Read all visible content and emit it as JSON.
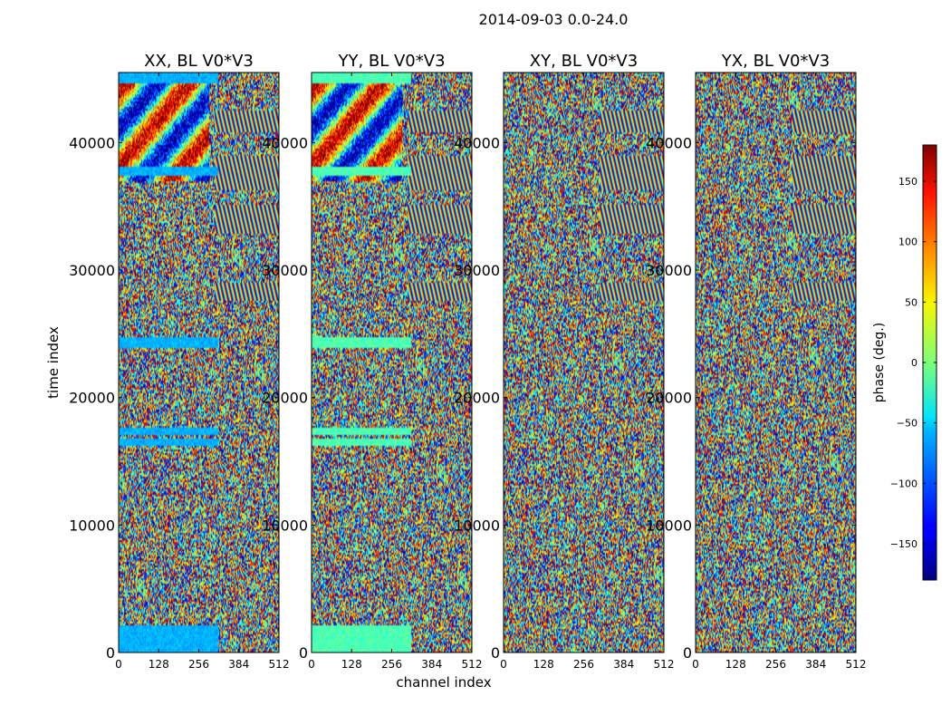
{
  "suptitle": "2014-09-03 0.0-24.0",
  "chart_data": {
    "type": "heatmap",
    "description_free": true,
    "xlabel": "channel index",
    "ylabel": "time index",
    "x_ticks": [
      0,
      128,
      256,
      384,
      512
    ],
    "y_ticks": [
      0,
      10000,
      20000,
      30000,
      40000
    ],
    "xlim": [
      0,
      512
    ],
    "ylim": [
      0,
      45500
    ],
    "panels": [
      {
        "title": "XX, BL V0*V3",
        "pol": "XX",
        "tick_labels_y": [
          "0",
          "10000",
          "20000",
          "30000",
          "40000"
        ]
      },
      {
        "title": "YY, BL V0*V3",
        "pol": "YY",
        "tick_labels_y": [
          "0",
          "10000",
          "20000",
          "30000",
          "40000"
        ]
      },
      {
        "title": "XY, BL V0*V3",
        "pol": "XY",
        "tick_labels_y": [
          "0",
          "10000",
          "20000",
          "30000",
          "40000"
        ]
      },
      {
        "title": "YX, BL V0*V3",
        "pol": "YX",
        "tick_labels_y": [
          "0",
          "10000",
          "20000",
          "30000",
          "40000"
        ]
      }
    ],
    "x_tick_labels": [
      "0",
      "128",
      "256",
      "384",
      "512"
    ],
    "colorbar": {
      "label": "phase (deg.)",
      "range": [
        -180,
        180
      ],
      "ticks": [
        -150,
        -100,
        -50,
        0,
        50,
        100,
        150
      ],
      "tick_labels": [
        "−150",
        "−100",
        "−50",
        "0",
        "50",
        "100",
        "150"
      ],
      "colormap": "jet"
    }
  }
}
